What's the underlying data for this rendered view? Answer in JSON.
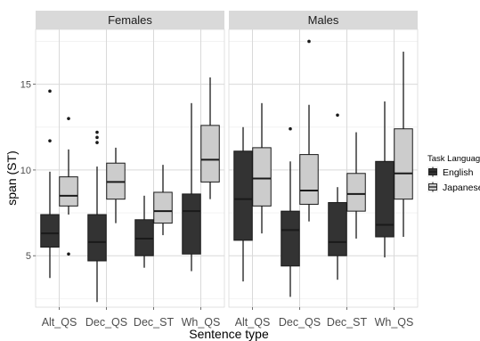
{
  "chart_data": {
    "type": "boxplot",
    "facets": [
      "Females",
      "Males"
    ],
    "categories": [
      "Alt_QS",
      "Dec_QS",
      "Dec_ST",
      "Wh_QS"
    ],
    "xlabel": "Sentence type",
    "ylabel": "span (ST)",
    "ylim": [
      2,
      18.2
    ],
    "yticks": [
      5,
      10,
      15
    ],
    "grid": true,
    "legend": {
      "title": "Task Language",
      "placement": "right",
      "entries": [
        "English",
        "Japanese"
      ]
    },
    "series": [
      {
        "name": "English",
        "color": "#333333",
        "boxes": {
          "Females": [
            {
              "category": "Alt_QS",
              "lower_whisker": 3.7,
              "q1": 5.5,
              "median": 6.3,
              "q3": 7.4,
              "upper_whisker": 9.9,
              "outliers": [
                11.7,
                14.6
              ]
            },
            {
              "category": "Dec_QS",
              "lower_whisker": 2.3,
              "q1": 4.7,
              "median": 5.8,
              "q3": 7.4,
              "upper_whisker": 10.2,
              "outliers": [
                11.6,
                11.9,
                12.2
              ]
            },
            {
              "category": "Dec_ST",
              "lower_whisker": 4.3,
              "q1": 5.0,
              "median": 6.0,
              "q3": 7.1,
              "upper_whisker": 8.5,
              "outliers": []
            },
            {
              "category": "Wh_QS",
              "lower_whisker": 4.1,
              "q1": 5.1,
              "median": 7.6,
              "q3": 8.6,
              "upper_whisker": 13.9,
              "outliers": []
            }
          ],
          "Males": [
            {
              "category": "Alt_QS",
              "lower_whisker": 3.5,
              "q1": 5.9,
              "median": 8.3,
              "q3": 11.1,
              "upper_whisker": 12.5,
              "outliers": []
            },
            {
              "category": "Dec_QS",
              "lower_whisker": 2.6,
              "q1": 4.4,
              "median": 6.5,
              "q3": 7.6,
              "upper_whisker": 10.5,
              "outliers": [
                12.4
              ]
            },
            {
              "category": "Dec_ST",
              "lower_whisker": 3.6,
              "q1": 5.0,
              "median": 5.8,
              "q3": 8.1,
              "upper_whisker": 9.0,
              "outliers": [
                13.2
              ]
            },
            {
              "category": "Wh_QS",
              "lower_whisker": 4.9,
              "q1": 6.1,
              "median": 6.8,
              "q3": 10.5,
              "upper_whisker": 14.0,
              "outliers": []
            }
          ]
        }
      },
      {
        "name": "Japanese",
        "color": "#cccccc",
        "boxes": {
          "Females": [
            {
              "category": "Alt_QS",
              "lower_whisker": 7.4,
              "q1": 7.9,
              "median": 8.5,
              "q3": 9.6,
              "upper_whisker": 11.2,
              "outliers": [
                5.1,
                13.0
              ]
            },
            {
              "category": "Dec_QS",
              "lower_whisker": 6.9,
              "q1": 8.3,
              "median": 9.3,
              "q3": 10.4,
              "upper_whisker": 11.3,
              "outliers": []
            },
            {
              "category": "Dec_ST",
              "lower_whisker": 6.2,
              "q1": 6.9,
              "median": 7.6,
              "q3": 8.7,
              "upper_whisker": 10.3,
              "outliers": []
            },
            {
              "category": "Wh_QS",
              "lower_whisker": 8.3,
              "q1": 9.3,
              "median": 10.6,
              "q3": 12.6,
              "upper_whisker": 15.4,
              "outliers": []
            }
          ],
          "Males": [
            {
              "category": "Alt_QS",
              "lower_whisker": 6.3,
              "q1": 7.9,
              "median": 9.5,
              "q3": 11.3,
              "upper_whisker": 13.9,
              "outliers": []
            },
            {
              "category": "Dec_QS",
              "lower_whisker": 7.0,
              "q1": 8.0,
              "median": 8.8,
              "q3": 10.9,
              "upper_whisker": 13.8,
              "outliers": [
                17.5
              ]
            },
            {
              "category": "Dec_ST",
              "lower_whisker": 6.0,
              "q1": 7.6,
              "median": 8.6,
              "q3": 9.8,
              "upper_whisker": 12.2,
              "outliers": []
            },
            {
              "category": "Wh_QS",
              "lower_whisker": 6.1,
              "q1": 8.3,
              "median": 9.8,
              "q3": 12.4,
              "upper_whisker": 16.9,
              "outliers": []
            }
          ]
        }
      }
    ]
  }
}
